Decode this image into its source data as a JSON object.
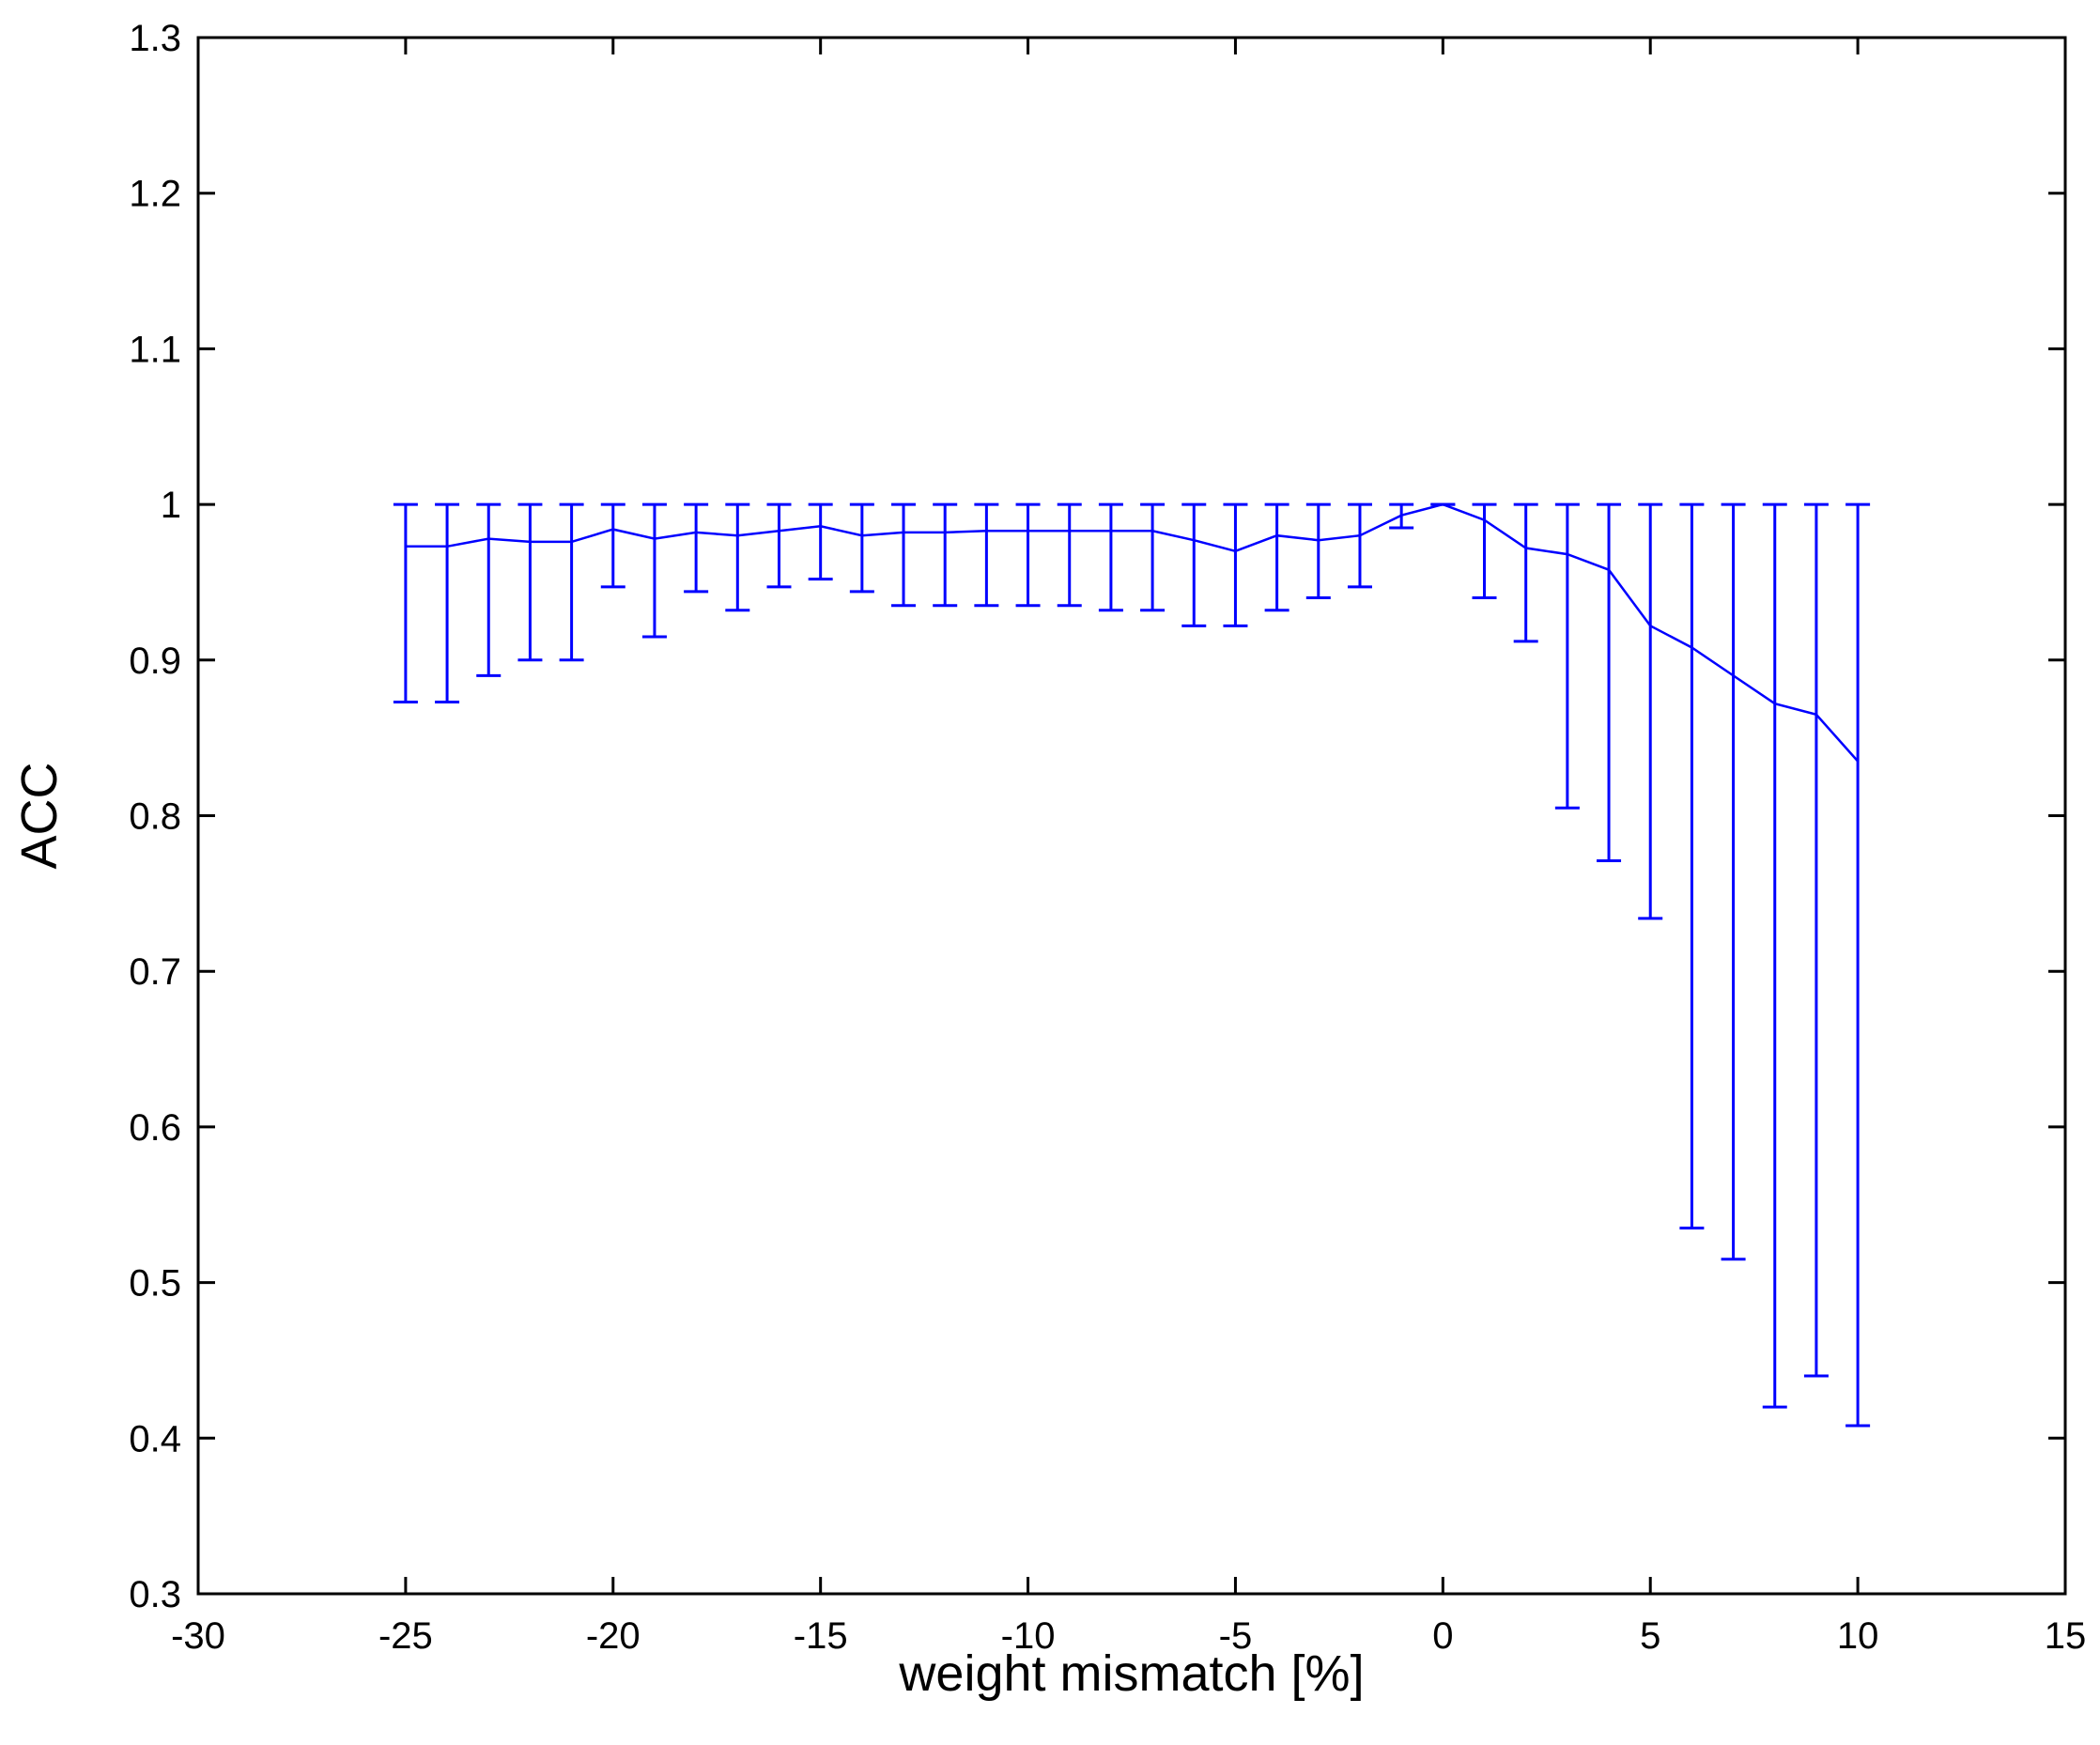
{
  "chart_data": {
    "type": "line",
    "title": "",
    "xlabel": "weight mismatch [%]",
    "ylabel": "ACC",
    "xlim": [
      -30,
      15
    ],
    "ylim": [
      0.3,
      1.3
    ],
    "xticks": [
      -30,
      -25,
      -20,
      -15,
      -10,
      -5,
      0,
      5,
      10,
      15
    ],
    "xtick_labels": [
      "-30",
      "-25",
      "-20",
      "-15",
      "-10",
      "-5",
      "0",
      "5",
      "10",
      "15"
    ],
    "yticks": [
      0.3,
      0.4,
      0.5,
      0.6,
      0.7,
      0.8,
      0.9,
      1.0,
      1.1,
      1.2,
      1.3
    ],
    "ytick_labels": [
      "0.3",
      "0.4",
      "0.5",
      "0.6",
      "0.7",
      "0.8",
      "0.9",
      "1",
      "1.1",
      "1.2",
      "1.3"
    ],
    "grid": false,
    "legend": "none",
    "series": [
      {
        "color": "#0000ff",
        "error_bars": true,
        "x": [
          -25,
          -24,
          -23,
          -22,
          -21,
          -20,
          -19,
          -18,
          -17,
          -16,
          -15,
          -14,
          -13,
          -12,
          -11,
          -10,
          -9,
          -8,
          -7,
          -6,
          -5,
          -4,
          -3,
          -2,
          -1,
          0,
          1,
          2,
          3,
          4,
          5,
          6,
          7,
          8,
          9,
          10
        ],
        "y": [
          0.973,
          0.973,
          0.978,
          0.976,
          0.976,
          0.984,
          0.978,
          0.982,
          0.98,
          0.983,
          0.986,
          0.98,
          0.982,
          0.982,
          0.983,
          0.983,
          0.983,
          0.983,
          0.983,
          0.977,
          0.97,
          0.98,
          0.977,
          0.98,
          0.993,
          1.0,
          0.99,
          0.972,
          0.968,
          0.958,
          0.922,
          0.908,
          0.89,
          0.872,
          0.865,
          0.835
        ],
        "lower": [
          0.873,
          0.873,
          0.89,
          0.9,
          0.9,
          0.947,
          0.915,
          0.944,
          0.932,
          0.947,
          0.952,
          0.944,
          0.935,
          0.935,
          0.935,
          0.935,
          0.935,
          0.932,
          0.932,
          0.922,
          0.922,
          0.932,
          0.94,
          0.947,
          0.985,
          1.0,
          0.94,
          0.912,
          0.805,
          0.771,
          0.734,
          0.535,
          0.515,
          0.42,
          0.44,
          0.408
        ],
        "upper": [
          1.0,
          1.0,
          1.0,
          1.0,
          1.0,
          1.0,
          1.0,
          1.0,
          1.0,
          1.0,
          1.0,
          1.0,
          1.0,
          1.0,
          1.0,
          1.0,
          1.0,
          1.0,
          1.0,
          1.0,
          1.0,
          1.0,
          1.0,
          1.0,
          1.0,
          1.0,
          1.0,
          1.0,
          1.0,
          1.0,
          1.0,
          1.0,
          1.0,
          1.0,
          1.0,
          1.0
        ]
      }
    ]
  }
}
